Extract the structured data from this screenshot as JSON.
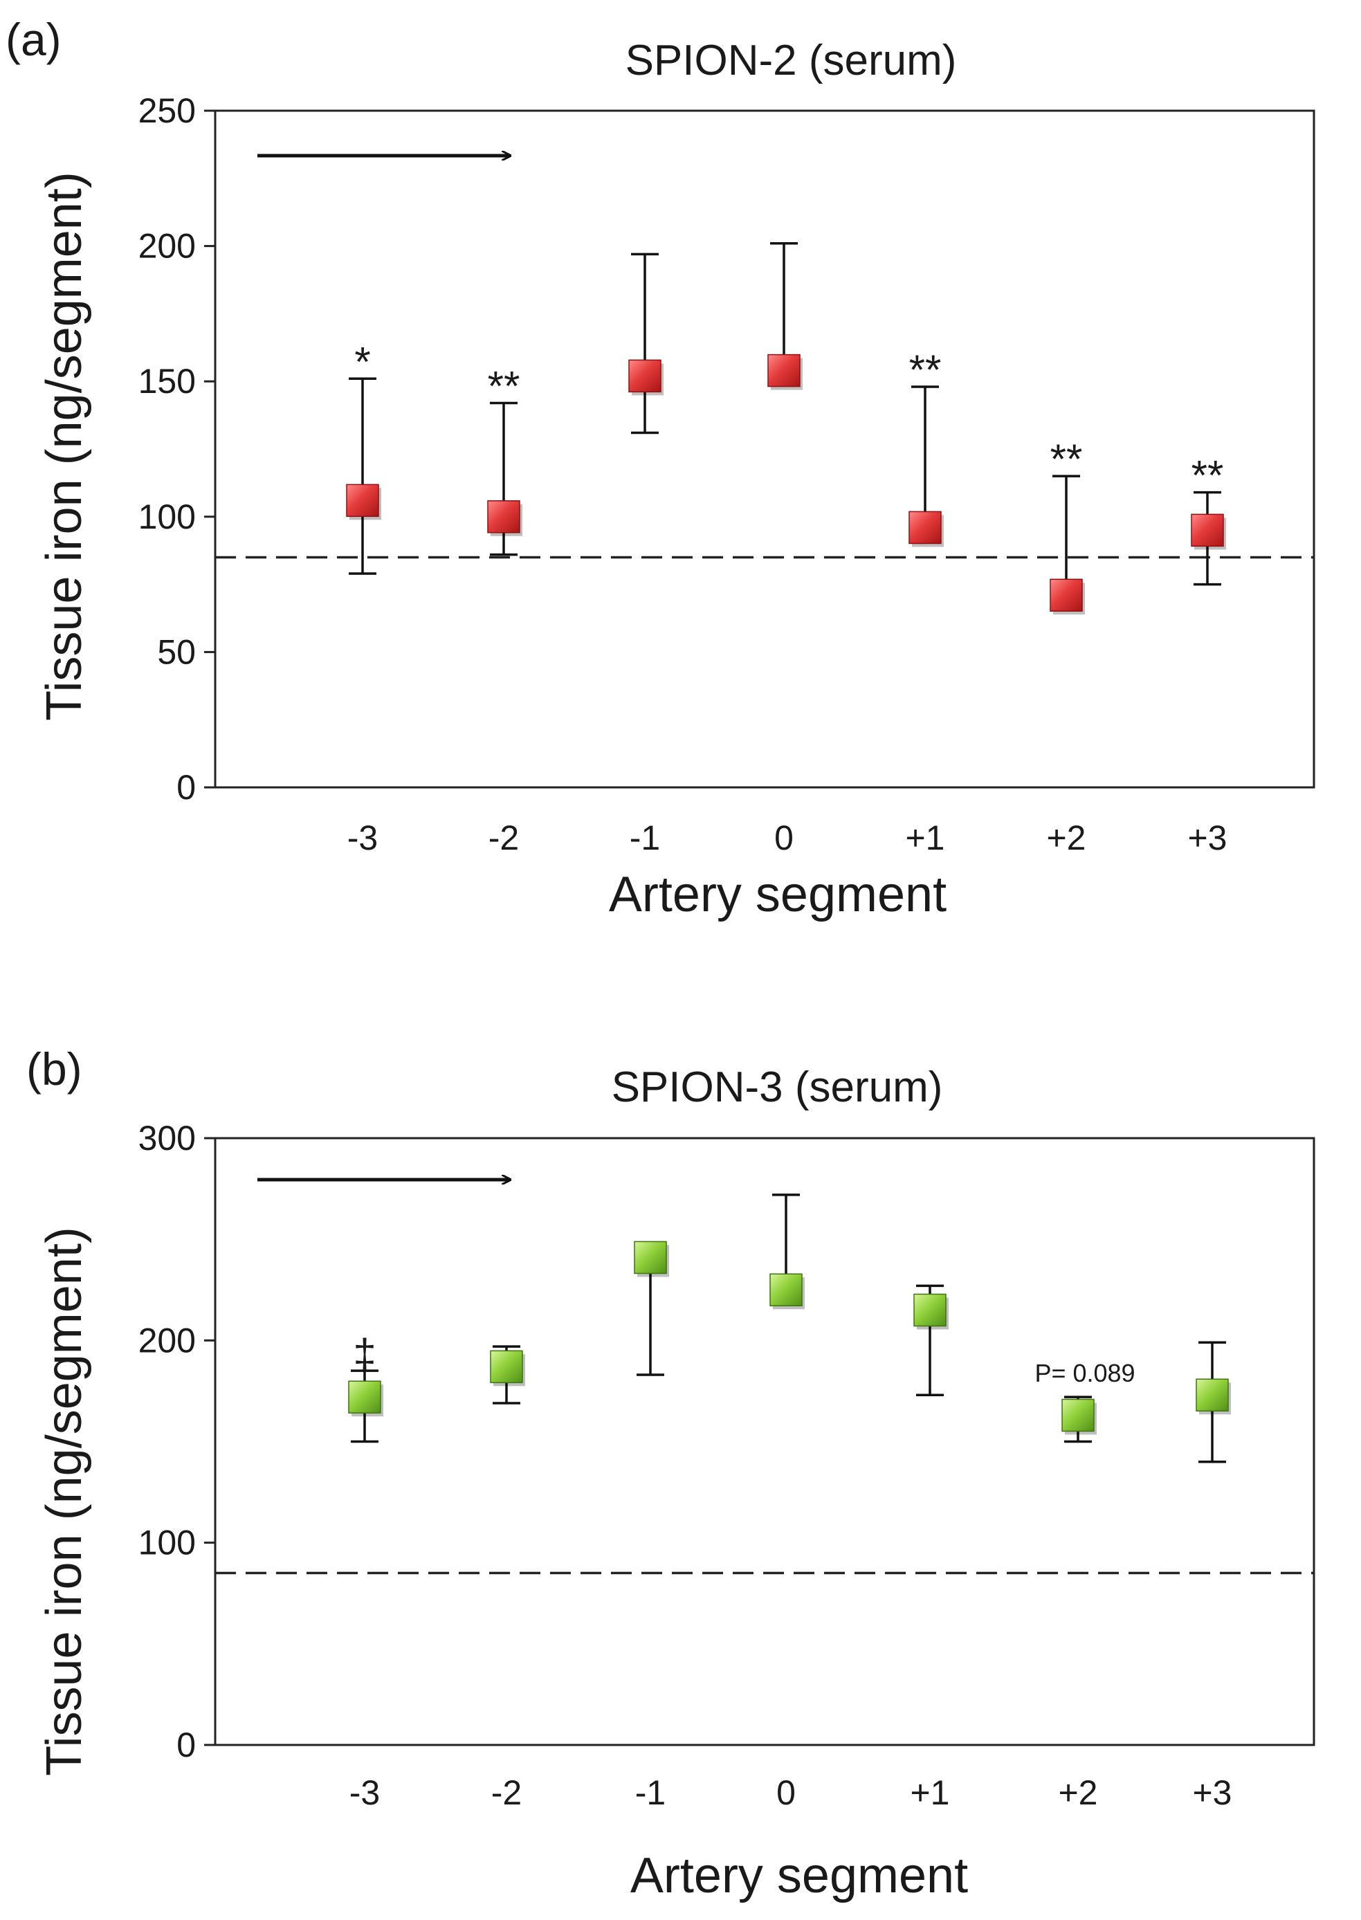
{
  "chart_data": [
    {
      "panel_label": "(a)",
      "type": "scatter",
      "title": "SPION-2 (serum)",
      "xlabel": "Artery segment",
      "ylabel": "Tissue iron (ng/segment)",
      "ylim": [
        0,
        250
      ],
      "yticks": [
        0,
        50,
        100,
        150,
        200,
        250
      ],
      "categories": [
        "-3",
        "-2",
        "-1",
        "0",
        "+1",
        "+2",
        "+3"
      ],
      "series": [
        {
          "name": "SPION-2",
          "color": "#d42a2a",
          "values": [
            106,
            100,
            152,
            154,
            96,
            71,
            95
          ],
          "error_upper": [
            151,
            142,
            197,
            201,
            148,
            115,
            109
          ],
          "error_lower": [
            79,
            86,
            131,
            null,
            null,
            null,
            75
          ]
        }
      ],
      "reference_line": 85,
      "annotations": [
        "*",
        "**",
        "",
        "",
        "**",
        "**",
        "**"
      ],
      "flow_arrow": true
    },
    {
      "panel_label": "(b)",
      "type": "scatter",
      "title": "SPION-3 (serum)",
      "xlabel": "Artery segment",
      "ylabel": "Tissue iron (ng/segment)",
      "ylim": [
        0,
        300
      ],
      "yticks": [
        0,
        100,
        200,
        300
      ],
      "categories": [
        "-3",
        "-2",
        "-1",
        "0",
        "+1",
        "+2",
        "+3"
      ],
      "series": [
        {
          "name": "SPION-3",
          "color": "#7cc42a",
          "values": [
            172,
            187,
            241,
            225,
            215,
            163,
            173
          ],
          "error_upper": [
            185,
            197,
            null,
            272,
            227,
            172,
            199
          ],
          "error_lower": [
            150,
            169,
            183,
            null,
            173,
            150,
            140
          ]
        }
      ],
      "reference_line": 85,
      "annotations": [
        "‡",
        "",
        "",
        "",
        "",
        "P= 0.089",
        ""
      ],
      "flow_arrow": true
    }
  ]
}
